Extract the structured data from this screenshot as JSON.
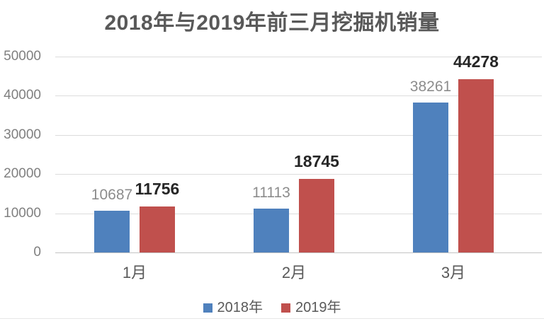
{
  "title": "2018年与2019年前三月挖掘机销量",
  "chart_data": {
    "type": "bar",
    "title": "2018年与2019年前三月挖掘机销量",
    "categories": [
      "1月",
      "2月",
      "3月"
    ],
    "series": [
      {
        "name": "2018年",
        "color": "#4F81BD",
        "values": [
          10687,
          11113,
          38261
        ],
        "label_style": "gray"
      },
      {
        "name": "2019年",
        "color": "#C0504D",
        "values": [
          11756,
          18745,
          44278
        ],
        "label_style": "bold"
      }
    ],
    "xlabel": "",
    "ylabel": "",
    "ylim": [
      0,
      50000
    ],
    "y_ticks": [
      0,
      10000,
      20000,
      30000,
      40000,
      50000
    ],
    "grid": true,
    "data_labels": true,
    "legend_position": "bottom"
  }
}
